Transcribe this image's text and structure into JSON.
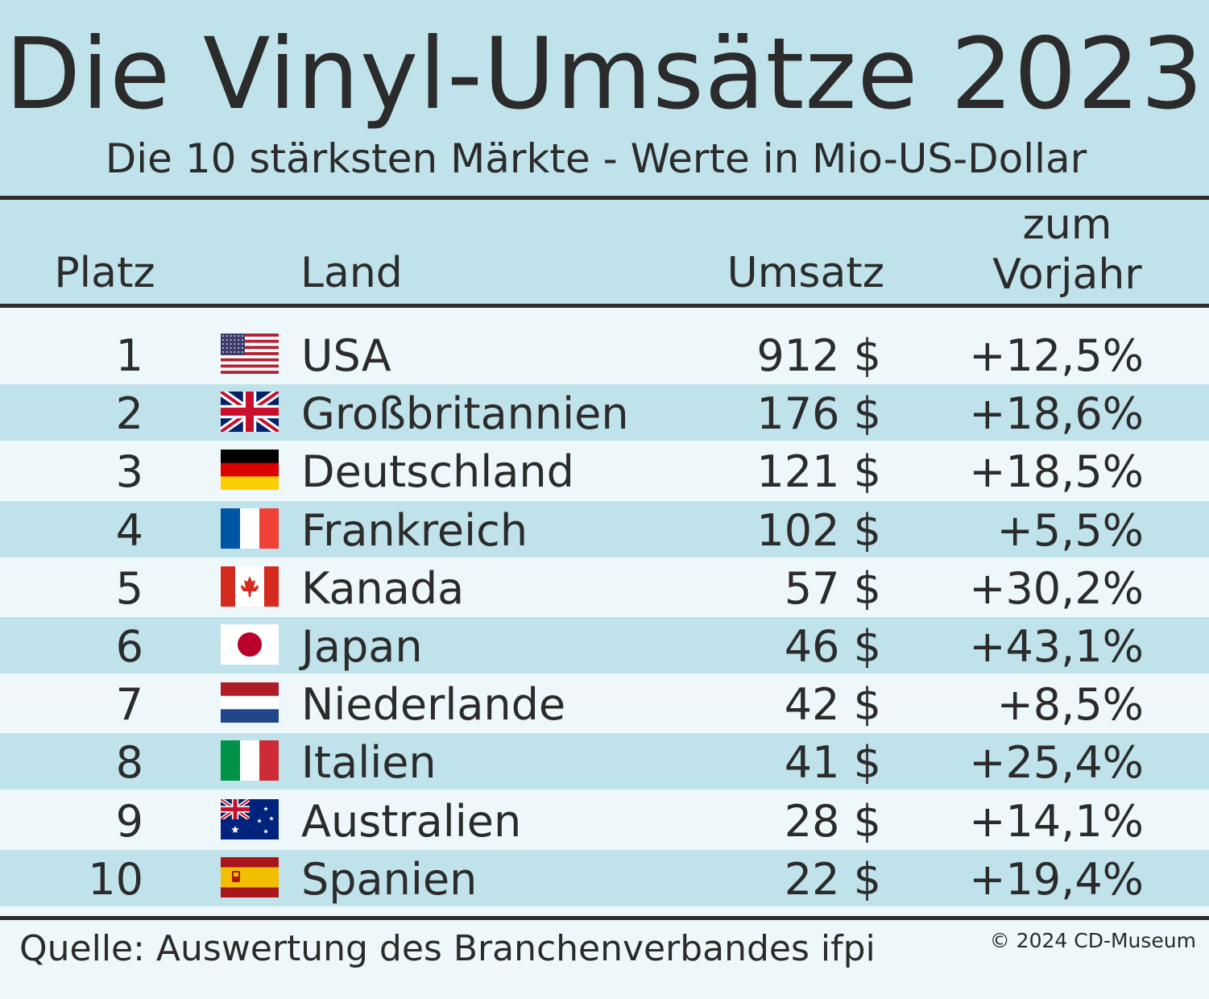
{
  "header": {
    "title": "Die Vinyl-Umsätze 2023",
    "subtitle": "Die 10 stärksten Märkte - Werte in Mio-US-Dollar"
  },
  "columns": {
    "platz": "Platz",
    "land": "Land",
    "umsatz": "Umsatz",
    "vorjahr_line1": "zum",
    "vorjahr_line2": "Vorjahr"
  },
  "chart_data": {
    "type": "table",
    "title": "Die Vinyl-Umsätze 2023",
    "subtitle": "Die 10 stärksten Märkte - Werte in Mio-US-Dollar",
    "columns": [
      "Platz",
      "Land",
      "Umsatz",
      "zum Vorjahr"
    ],
    "rows": [
      {
        "rank": "1",
        "country": "USA",
        "flag": "us-flag-icon",
        "revenue": "912 $",
        "change": "+12,5%"
      },
      {
        "rank": "2",
        "country": "Großbritannien",
        "flag": "uk-flag-icon",
        "revenue": "176 $",
        "change": "+18,6%"
      },
      {
        "rank": "3",
        "country": "Deutschland",
        "flag": "germany-flag-icon",
        "revenue": "121 $",
        "change": "+18,5%"
      },
      {
        "rank": "4",
        "country": "Frankreich",
        "flag": "france-flag-icon",
        "revenue": "102 $",
        "change": "+5,5%"
      },
      {
        "rank": "5",
        "country": "Kanada",
        "flag": "canada-flag-icon",
        "revenue": "57 $",
        "change": "+30,2%"
      },
      {
        "rank": "6",
        "country": "Japan",
        "flag": "japan-flag-icon",
        "revenue": "46 $",
        "change": "+43,1%"
      },
      {
        "rank": "7",
        "country": "Niederlande",
        "flag": "netherlands-flag-icon",
        "revenue": "42 $",
        "change": "+8,5%"
      },
      {
        "rank": "8",
        "country": "Italien",
        "flag": "italy-flag-icon",
        "revenue": "41 $",
        "change": "+25,4%"
      },
      {
        "rank": "9",
        "country": "Australien",
        "flag": "australia-flag-icon",
        "revenue": "28 $",
        "change": "+14,1%"
      },
      {
        "rank": "10",
        "country": "Spanien",
        "flag": "spain-flag-icon",
        "revenue": "22 $",
        "change": "+19,4%"
      }
    ]
  },
  "footer": {
    "source": "Quelle: Auswertung des Branchenverbandes ifpi",
    "copyright": "© 2024 CD-Museum"
  },
  "colors": {
    "band": "#c0e2eb",
    "light_band": "#eef8fa",
    "text": "#2b2b2b",
    "rule": "#2d2d2d"
  }
}
